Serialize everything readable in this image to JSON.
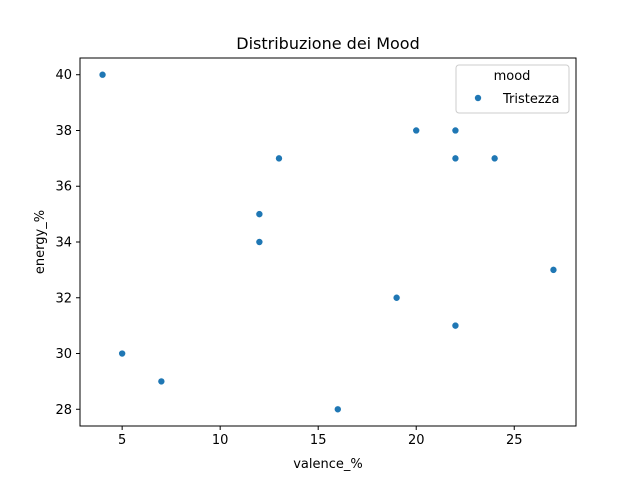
{
  "chart_data": {
    "type": "scatter",
    "title": "Distribuzione dei Mood",
    "xlabel": "valence_%",
    "ylabel": "energy_%",
    "xlim": [
      2.85,
      28.15
    ],
    "ylim": [
      27.4,
      40.6
    ],
    "xticks": [
      5,
      10,
      15,
      20,
      25
    ],
    "yticks": [
      28,
      30,
      32,
      34,
      36,
      38,
      40
    ],
    "grid": false,
    "legend": {
      "title": "mood",
      "placement": "top-right",
      "entries": [
        "Tristezza"
      ]
    },
    "series": [
      {
        "name": "Tristezza",
        "color": "#1f77b4",
        "points": [
          {
            "x": 4,
            "y": 40
          },
          {
            "x": 5,
            "y": 30
          },
          {
            "x": 7,
            "y": 29
          },
          {
            "x": 12,
            "y": 35
          },
          {
            "x": 12,
            "y": 34
          },
          {
            "x": 13,
            "y": 37
          },
          {
            "x": 16,
            "y": 28
          },
          {
            "x": 19,
            "y": 32
          },
          {
            "x": 20,
            "y": 38
          },
          {
            "x": 22,
            "y": 38
          },
          {
            "x": 22,
            "y": 37
          },
          {
            "x": 22,
            "y": 31
          },
          {
            "x": 24,
            "y": 37
          },
          {
            "x": 27,
            "y": 33
          }
        ]
      }
    ]
  }
}
